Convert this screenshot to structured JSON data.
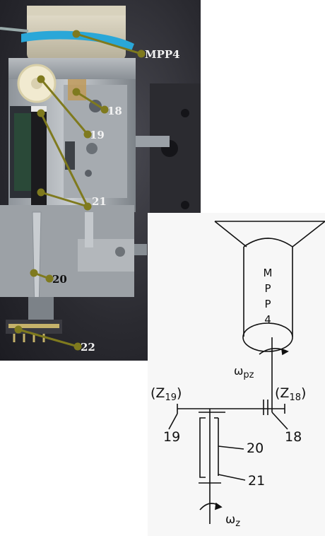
{
  "photo": {
    "callouts": [
      {
        "id": "mpp4",
        "text": "MPP4"
      },
      {
        "id": "c18",
        "text": "18"
      },
      {
        "id": "c19",
        "text": "19"
      },
      {
        "id": "c21",
        "text": "21"
      },
      {
        "id": "c20",
        "text": "20"
      },
      {
        "id": "c22",
        "text": "22"
      }
    ],
    "callout_color": "#7f7a1e"
  },
  "schematic": {
    "motor_letters": [
      "M",
      "P",
      "P",
      "4"
    ],
    "omega_pz": {
      "main": "ω",
      "sub": "pz"
    },
    "z19": {
      "open": "(Z",
      "sub": "19",
      "close": ")"
    },
    "z18": {
      "open": "(Z",
      "sub": "18",
      "close": ")"
    },
    "label_19": "19",
    "label_18": "18",
    "label_20": "20",
    "label_21": "21",
    "omega_z": {
      "main": "ω",
      "sub": "z"
    }
  }
}
